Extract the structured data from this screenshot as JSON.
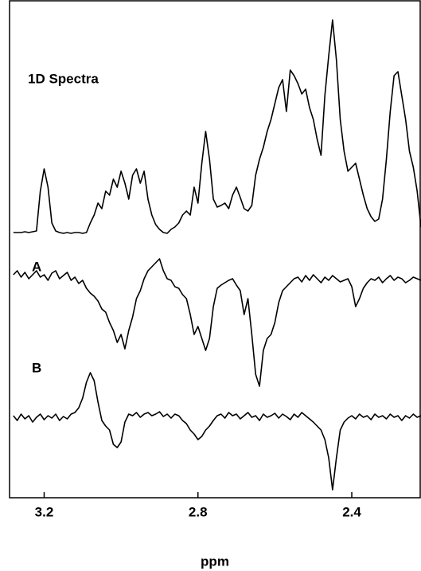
{
  "chart_data": {
    "type": "line",
    "annotations": [
      "1D Spectra",
      "A",
      "B"
    ],
    "xlabel": "ppm",
    "xlim": [
      3.29,
      2.22
    ],
    "xticks": [
      3.2,
      2.8,
      2.4
    ],
    "ylim": [
      0,
      625
    ],
    "x": [
      3.28,
      3.27,
      3.26,
      3.25,
      3.24,
      3.23,
      3.22,
      3.21,
      3.2,
      3.19,
      3.18,
      3.17,
      3.16,
      3.15,
      3.14,
      3.13,
      3.12,
      3.11,
      3.1,
      3.09,
      3.08,
      3.07,
      3.06,
      3.05,
      3.04,
      3.03,
      3.02,
      3.01,
      3.0,
      2.99,
      2.98,
      2.97,
      2.96,
      2.95,
      2.94,
      2.93,
      2.92,
      2.91,
      2.9,
      2.89,
      2.88,
      2.87,
      2.86,
      2.85,
      2.84,
      2.83,
      2.82,
      2.81,
      2.8,
      2.79,
      2.78,
      2.77,
      2.76,
      2.75,
      2.74,
      2.73,
      2.72,
      2.71,
      2.7,
      2.69,
      2.68,
      2.67,
      2.66,
      2.65,
      2.64,
      2.63,
      2.62,
      2.61,
      2.6,
      2.59,
      2.58,
      2.57,
      2.56,
      2.55,
      2.54,
      2.53,
      2.52,
      2.51,
      2.5,
      2.49,
      2.48,
      2.47,
      2.46,
      2.45,
      2.44,
      2.43,
      2.42,
      2.41,
      2.4,
      2.39,
      2.38,
      2.37,
      2.36,
      2.35,
      2.34,
      2.33,
      2.32,
      2.31,
      2.3,
      2.29,
      2.28,
      2.27,
      2.26,
      2.25,
      2.24,
      2.23,
      2.22
    ],
    "series": [
      {
        "name": "1D Spectra",
        "color": "#000000",
        "values": [
          333,
          333,
          333,
          334,
          333,
          334,
          335,
          385,
          413,
          390,
          345,
          335,
          333,
          332,
          333,
          332,
          333,
          333,
          332,
          333,
          345,
          355,
          370,
          363,
          385,
          380,
          400,
          390,
          410,
          395,
          375,
          405,
          413,
          395,
          410,
          375,
          355,
          343,
          337,
          333,
          332,
          337,
          340,
          345,
          355,
          360,
          355,
          390,
          370,
          420,
          460,
          425,
          375,
          365,
          367,
          370,
          363,
          380,
          390,
          377,
          363,
          360,
          367,
          405,
          425,
          440,
          460,
          475,
          495,
          515,
          525,
          485,
          537,
          530,
          520,
          507,
          513,
          490,
          475,
          450,
          430,
          505,
          555,
          600,
          550,
          475,
          435,
          410,
          415,
          420,
          400,
          380,
          363,
          353,
          347,
          350,
          375,
          425,
          485,
          530,
          535,
          505,
          475,
          435,
          415,
          385,
          340
        ]
      },
      {
        "name": "A",
        "color": "#000000",
        "values": [
          280,
          285,
          277,
          283,
          275,
          280,
          285,
          277,
          280,
          273,
          282,
          285,
          275,
          279,
          283,
          273,
          277,
          269,
          273,
          263,
          257,
          253,
          247,
          237,
          233,
          220,
          210,
          195,
          205,
          187,
          210,
          227,
          250,
          260,
          275,
          285,
          290,
          295,
          300,
          285,
          275,
          273,
          265,
          263,
          255,
          250,
          230,
          205,
          215,
          200,
          185,
          200,
          240,
          263,
          267,
          270,
          273,
          275,
          267,
          260,
          230,
          250,
          205,
          155,
          140,
          185,
          200,
          205,
          220,
          245,
          260,
          265,
          270,
          275,
          277,
          271,
          279,
          273,
          280,
          275,
          270,
          277,
          273,
          279,
          275,
          271,
          273,
          275,
          265,
          240,
          250,
          263,
          270,
          275,
          273,
          277,
          270,
          275,
          279,
          273,
          277,
          275,
          270,
          273,
          277,
          275,
          273
        ]
      },
      {
        "name": "B",
        "color": "#000000",
        "values": [
          103,
          97,
          105,
          99,
          103,
          95,
          101,
          105,
          98,
          103,
          100,
          105,
          97,
          102,
          99,
          105,
          107,
          113,
          125,
          145,
          157,
          147,
          120,
          97,
          90,
          85,
          67,
          63,
          70,
          95,
          105,
          103,
          107,
          101,
          105,
          107,
          103,
          105,
          108,
          102,
          105,
          100,
          105,
          103,
          97,
          93,
          85,
          80,
          73,
          77,
          85,
          90,
          97,
          103,
          105,
          100,
          107,
          103,
          105,
          99,
          103,
          107,
          101,
          103,
          97,
          105,
          101,
          103,
          106,
          100,
          105,
          102,
          98,
          105,
          101,
          107,
          103,
          99,
          95,
          90,
          85,
          73,
          50,
          10,
          50,
          85,
          95,
          100,
          103,
          99,
          105,
          101,
          103,
          98,
          105,
          101,
          103,
          99,
          105,
          101,
          103,
          97,
          103,
          100,
          105,
          101,
          103
        ]
      }
    ]
  }
}
